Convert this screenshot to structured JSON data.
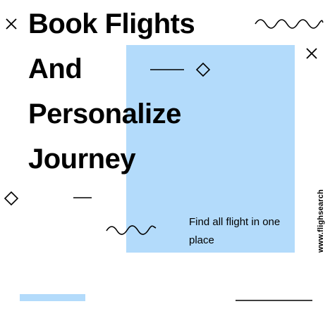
{
  "colors": {
    "accent": "#b3dbfb",
    "text": "#000000",
    "background": "#ffffff"
  },
  "headline": [
    "Book Flights",
    "And",
    "Personalize",
    "Journey"
  ],
  "subtitle": "Find all flight in one place",
  "website": "www.flighsearch",
  "icons": [
    "close-icon",
    "close-icon",
    "diamond-icon",
    "diamond-icon",
    "wave-icon",
    "wave-icon",
    "dash-line"
  ]
}
